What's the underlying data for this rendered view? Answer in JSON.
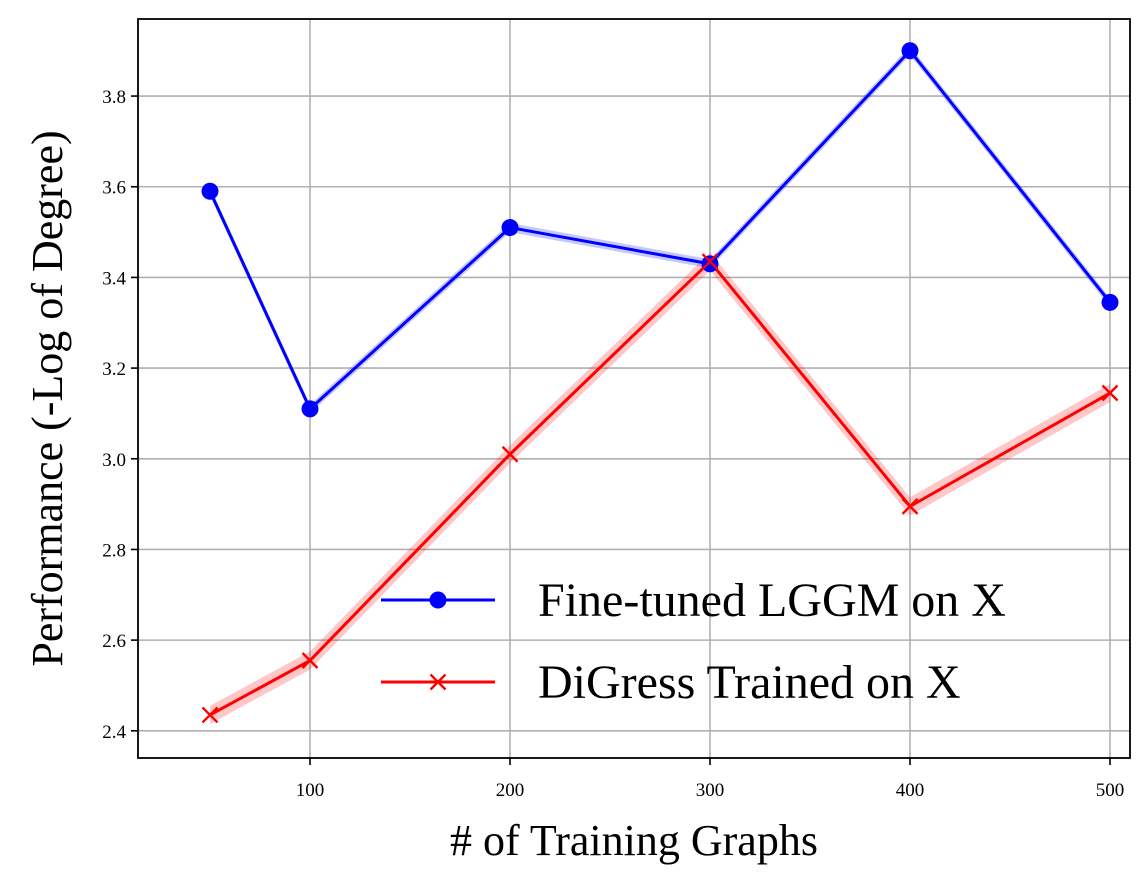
{
  "chart_data": {
    "type": "line",
    "title": "",
    "xlabel": "# of Training Graphs",
    "ylabel": "Performance (-Log of Degree)",
    "xlim": [
      14,
      510
    ],
    "ylim": [
      2.34,
      3.97
    ],
    "xticks": [
      100,
      200,
      300,
      400,
      500
    ],
    "yticks": [
      2.4,
      2.6,
      2.8,
      3.0,
      3.2,
      3.4,
      3.6,
      3.8
    ],
    "xtick_labels": [
      "100",
      "200",
      "300",
      "400",
      "500"
    ],
    "ytick_labels": [
      "2.4",
      "2.6",
      "2.8",
      "3.0",
      "3.2",
      "3.4",
      "3.6",
      "3.8"
    ],
    "grid": true,
    "legend_position": "lower-right",
    "x": [
      50,
      100,
      200,
      300,
      400,
      500
    ],
    "series": [
      {
        "name": "Fine-tuned LGGM on X",
        "color": "#0000ff",
        "marker": "circle",
        "values": [
          3.59,
          3.11,
          3.51,
          3.43,
          3.9,
          3.345
        ],
        "band": 0.01
      },
      {
        "name": "DiGress Trained on X",
        "color": "#ff0000",
        "marker": "x",
        "values": [
          2.435,
          2.555,
          3.01,
          3.435,
          2.895,
          3.145
        ],
        "band": 0.02
      }
    ]
  }
}
